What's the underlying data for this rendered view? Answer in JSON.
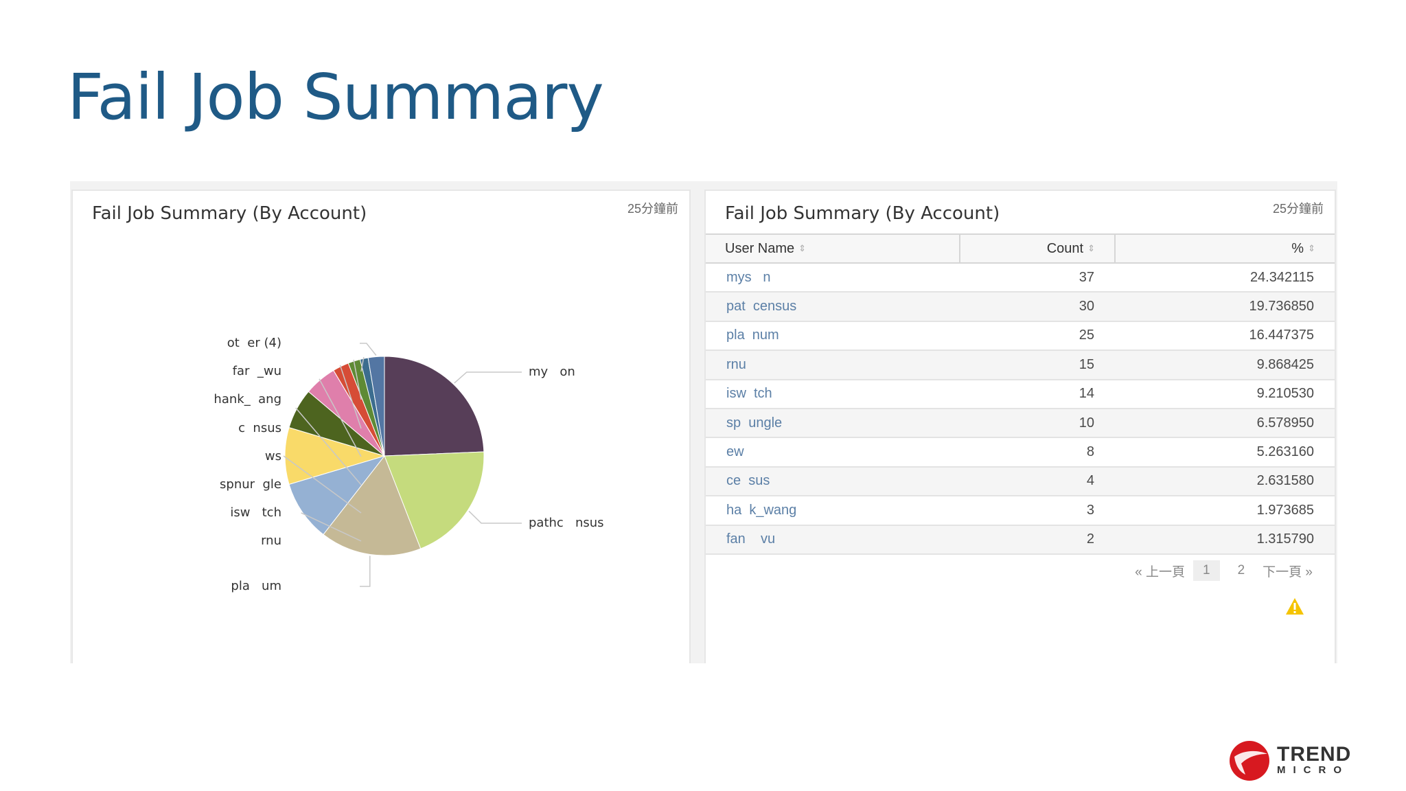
{
  "slide": {
    "title": "Fail Job Summary"
  },
  "panels": {
    "left": {
      "title": "Fail Job Summary (By Account)",
      "age": "25分鐘前"
    },
    "right": {
      "title": "Fail Job Summary (By Account)",
      "age": "25分鐘前"
    }
  },
  "chart_data": {
    "type": "pie",
    "slices": [
      {
        "label": "my   on",
        "value": 37,
        "color": "#573e58"
      },
      {
        "label": "pathc   nsus",
        "value": 30,
        "color": "#c5db7d"
      },
      {
        "label": "pla   um",
        "value": 25,
        "color": "#c5b996"
      },
      {
        "label": "rnu",
        "value": 15,
        "color": "#95b1d3"
      },
      {
        "label": "isw   tch",
        "value": 14,
        "color": "#f9da69"
      },
      {
        "label": "spnur  gle",
        "value": 10,
        "color": "#4d641f"
      },
      {
        "label": "  ws",
        "value": 8,
        "color": "#df7fab"
      },
      {
        "label": "c  nsus",
        "value": 4,
        "color": "#d64c36"
      },
      {
        "label": "hank_  ang",
        "value": 3,
        "color": "#5e8a35"
      },
      {
        "label": "far  _wu",
        "value": 2,
        "color": "#3c6d8f"
      },
      {
        "label": "ot  er (4)",
        "value": 4,
        "color": "#5376a3"
      }
    ]
  },
  "table": {
    "headers": {
      "user": "User Name",
      "count": "Count",
      "pct": "%"
    },
    "rows": [
      {
        "user": "mys   n",
        "count": "37",
        "pct": "24.342115"
      },
      {
        "user": "pat  census",
        "count": "30",
        "pct": "19.736850"
      },
      {
        "user": "pla  num",
        "count": "25",
        "pct": "16.447375"
      },
      {
        "user": "rnu",
        "count": "15",
        "pct": "9.868425"
      },
      {
        "user": "isw  tch",
        "count": "14",
        "pct": "9.210530"
      },
      {
        "user": "sp  ungle",
        "count": "10",
        "pct": "6.578950"
      },
      {
        "user": "ew   ",
        "count": "8",
        "pct": "5.263160"
      },
      {
        "user": "ce  sus",
        "count": "4",
        "pct": "2.631580"
      },
      {
        "user": "ha  k_wang",
        "count": "3",
        "pct": "1.973685"
      },
      {
        "user": "fan    vu",
        "count": "2",
        "pct": "1.315790"
      }
    ]
  },
  "pager": {
    "prev": "« 上一頁",
    "page1": "1",
    "page2": "2",
    "next": "下一頁 »"
  },
  "logo": {
    "top": "TREND",
    "bottom": "MICRO"
  }
}
